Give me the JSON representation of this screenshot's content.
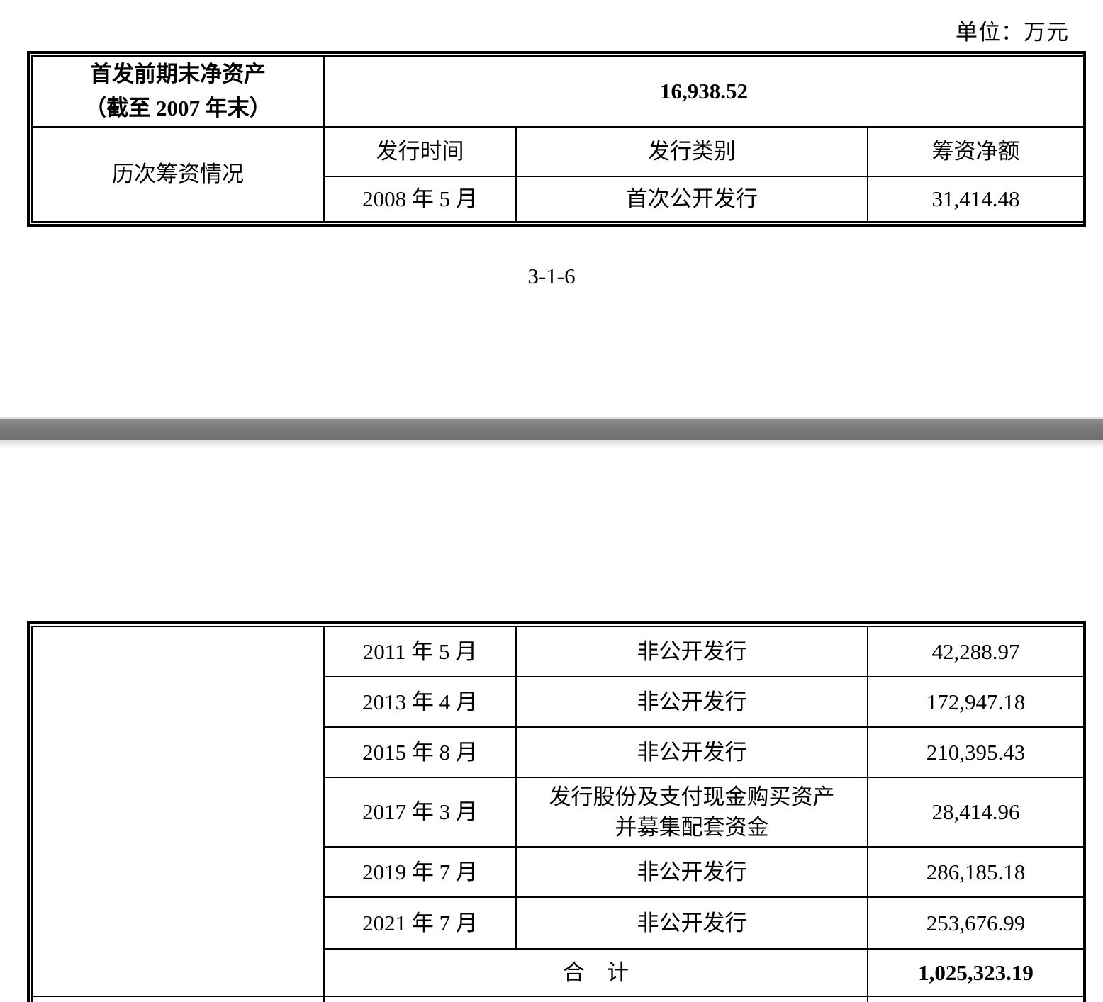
{
  "page1": {
    "unit_label": "单位：万元",
    "page_number": "3-1-6",
    "table": {
      "net_asset_label_line1": "首发前期末净资产",
      "net_asset_label_line2": "（截至 2007 年末）",
      "net_asset_value": "16,938.52",
      "financing_history_label": "历次筹资情况",
      "col_headers": [
        "发行时间",
        "发行类别",
        "筹资净额"
      ],
      "rows": [
        {
          "time": "2008 年 5 月",
          "type": "首次公开发行",
          "amount": "31,414.48"
        }
      ]
    }
  },
  "page2": {
    "table": {
      "rows": [
        {
          "time": "2011 年 5 月",
          "type": "非公开发行",
          "amount": "42,288.97"
        },
        {
          "time": "2013 年 4 月",
          "type": "非公开发行",
          "amount": "172,947.18"
        },
        {
          "time": "2015 年 8 月",
          "type": "非公开发行",
          "amount": "210,395.43"
        },
        {
          "time": "2017 年 3 月",
          "type": "发行股份及支付现金购买资产并募集配套资金",
          "amount": "28,414.96"
        },
        {
          "time": "2019 年 7 月",
          "type": "非公开发行",
          "amount": "286,185.18"
        },
        {
          "time": "2021 年 7 月",
          "type": "非公开发行",
          "amount": "253,676.99"
        }
      ],
      "total_label": "合　计",
      "total_value": "1,025,323.19"
    }
  }
}
